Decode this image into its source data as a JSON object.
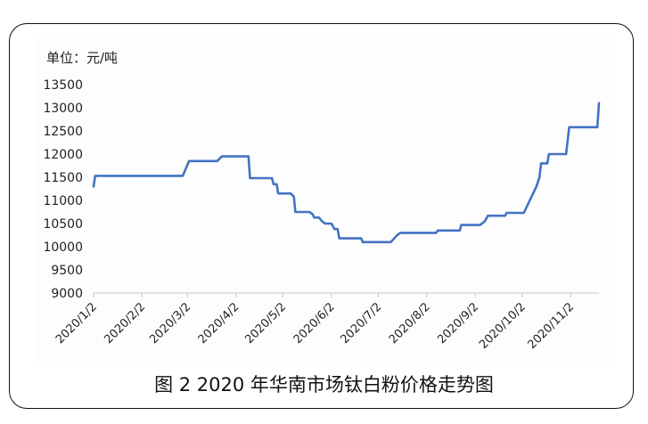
{
  "chart_data": {
    "type": "line",
    "title": "",
    "unit_label": "单位：元/吨",
    "caption": "图 2   2020 年华南市场钛白粉价格走势图",
    "xlabel": "",
    "ylabel": "",
    "ylim": [
      9000,
      13500
    ],
    "yticks": [
      9000,
      9500,
      10000,
      10500,
      11000,
      11500,
      12000,
      12500,
      13000,
      13500
    ],
    "xlim": [
      "2020-01-02",
      "2020-11-20"
    ],
    "xtick_dates": [
      "2020-01-02",
      "2020-02-02",
      "2020-03-02",
      "2020-04-02",
      "2020-05-02",
      "2020-06-02",
      "2020-07-02",
      "2020-08-02",
      "2020-09-02",
      "2020-10-02",
      "2020-11-02"
    ],
    "xtick_labels": [
      "2020/1/2",
      "2020/2/2",
      "2020/3/2",
      "2020/4/2",
      "2020/5/2",
      "2020/6/2",
      "2020/7/2",
      "2020/8/2",
      "2020/9/2",
      "2020/10/2",
      "2020/11/2"
    ],
    "grid": false,
    "line_color": "#4472c4",
    "series": [
      {
        "points": [
          [
            "2020-01-02",
            11300
          ],
          [
            "2020-01-03",
            11530
          ],
          [
            "2020-02-28",
            11530
          ],
          [
            "2020-03-03",
            11850
          ],
          [
            "2020-03-21",
            11850
          ],
          [
            "2020-03-24",
            11950
          ],
          [
            "2020-04-10",
            11950
          ],
          [
            "2020-04-11",
            11480
          ],
          [
            "2020-04-25",
            11480
          ],
          [
            "2020-04-26",
            11350
          ],
          [
            "2020-04-28",
            11350
          ],
          [
            "2020-04-29",
            11150
          ],
          [
            "2020-05-07",
            11150
          ],
          [
            "2020-05-09",
            11080
          ],
          [
            "2020-05-10",
            10750
          ],
          [
            "2020-05-19",
            10750
          ],
          [
            "2020-05-21",
            10700
          ],
          [
            "2020-05-22",
            10630
          ],
          [
            "2020-05-25",
            10630
          ],
          [
            "2020-05-27",
            10550
          ],
          [
            "2020-05-29",
            10500
          ],
          [
            "2020-06-02",
            10500
          ],
          [
            "2020-06-04",
            10380
          ],
          [
            "2020-06-06",
            10380
          ],
          [
            "2020-06-07",
            10180
          ],
          [
            "2020-06-21",
            10180
          ],
          [
            "2020-06-22",
            10100
          ],
          [
            "2020-07-10",
            10100
          ],
          [
            "2020-07-14",
            10250
          ],
          [
            "2020-07-16",
            10300
          ],
          [
            "2020-08-08",
            10300
          ],
          [
            "2020-08-09",
            10350
          ],
          [
            "2020-08-23",
            10350
          ],
          [
            "2020-08-24",
            10470
          ],
          [
            "2020-09-05",
            10470
          ],
          [
            "2020-09-08",
            10550
          ],
          [
            "2020-09-10",
            10670
          ],
          [
            "2020-09-21",
            10670
          ],
          [
            "2020-09-22",
            10730
          ],
          [
            "2020-10-03",
            10730
          ],
          [
            "2020-10-11",
            11300
          ],
          [
            "2020-10-13",
            11500
          ],
          [
            "2020-10-14",
            11800
          ],
          [
            "2020-10-18",
            11800
          ],
          [
            "2020-10-19",
            12000
          ],
          [
            "2020-10-30",
            12000
          ],
          [
            "2020-11-01",
            12580
          ],
          [
            "2020-11-19",
            12580
          ],
          [
            "2020-11-20",
            13100
          ]
        ]
      }
    ]
  }
}
